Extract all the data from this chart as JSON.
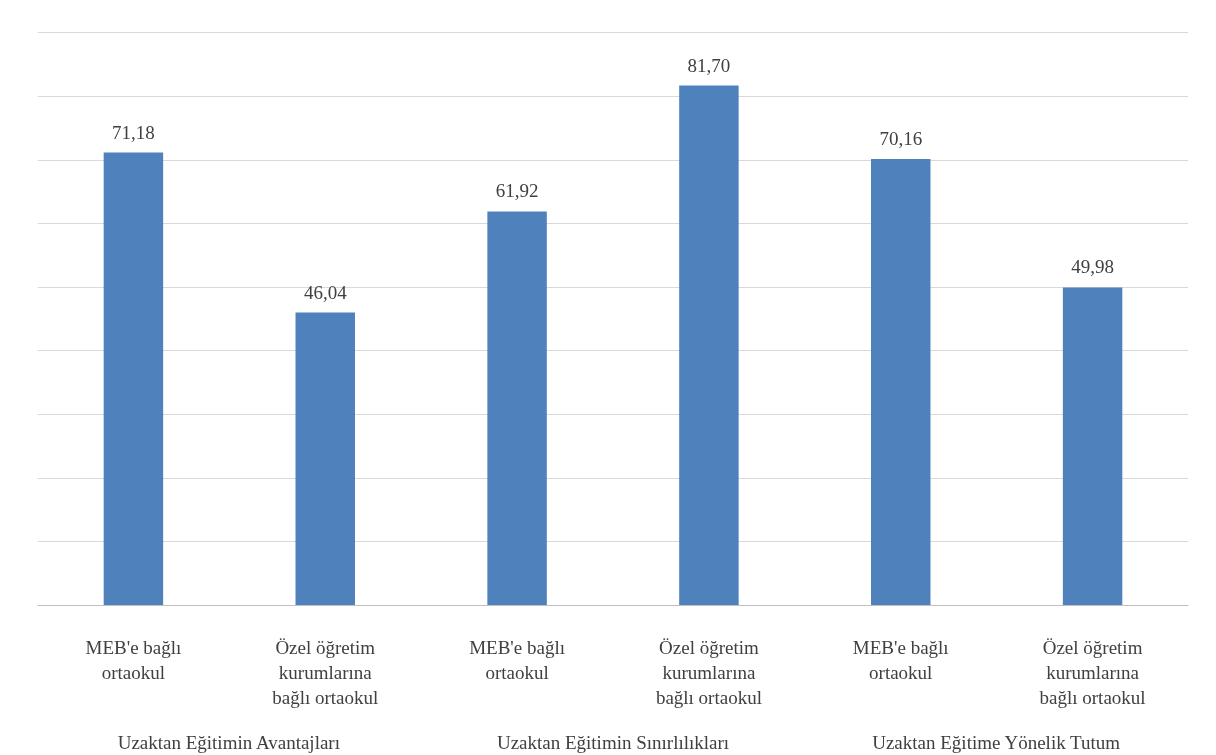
{
  "chart_data": {
    "type": "bar",
    "categories": [
      "MEB'e bağlı ortaokul",
      "Özel öğretim kurumlarına bağlı ortaokul",
      "MEB'e bağlı ortaokul",
      "Özel öğretim kurumlarına bağlı ortaokul",
      "MEB'e bağlı ortaokul",
      "Özel öğretim kurumlarına bağlı ortaokul"
    ],
    "values": [
      71.18,
      46.04,
      61.92,
      81.7,
      70.16,
      49.98
    ],
    "value_labels": [
      "71,18",
      "46,04",
      "61,92",
      "81,70",
      "70,16",
      "49,98"
    ],
    "color": "#4f81bd",
    "yticks": [
      {
        "value": 0,
        "label": null
      },
      {
        "value": 10,
        "label": null
      },
      {
        "value": 20,
        "label": null
      },
      {
        "value": 30,
        "label": null
      },
      {
        "value": 40,
        "label": null
      },
      {
        "value": 50,
        "label": null
      },
      {
        "value": 60,
        "label": null
      },
      {
        "value": 70,
        "label": null
      },
      {
        "value": 80,
        "label": null
      },
      {
        "value": 90,
        "label": null
      }
    ],
    "tick_labels": "x",
    "grid": "y",
    "annotations": [
      "Uzaktan Eğitimin Avantajları",
      "Uzaktan Eğitimin Sınırlılıkları",
      "Uzaktan Eğitime Yönelik Tutum"
    ]
  }
}
